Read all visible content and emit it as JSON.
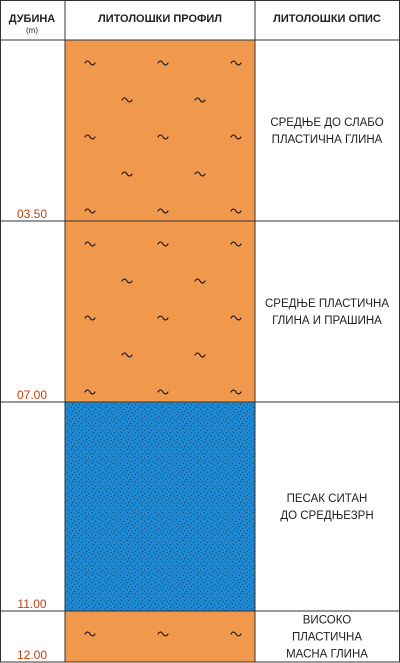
{
  "header": {
    "depth_title": "ДУБИНА",
    "depth_unit": "(m)",
    "profile_title": "ЛИТОЛОШКИ ПРОФИЛ",
    "description_title": "ЛИТОЛОШКИ ОПИС"
  },
  "colors": {
    "clay": "#f0984c",
    "sand": "#1e88d0",
    "depth_label": "#c04010",
    "border": "#333333",
    "text": "#222222"
  },
  "layers": [
    {
      "top": 0,
      "bottom": 3.5,
      "bottom_label": "03.50",
      "material": "clay",
      "fill_color": "#f0984c",
      "pattern": "tilde",
      "description": [
        "СРЕДЊЕ ДО СЛАБО",
        "ПЛАСТИЧНА ГЛИНА"
      ]
    },
    {
      "top": 3.5,
      "bottom": 7.0,
      "bottom_label": "07.00",
      "material": "clay-silt",
      "fill_color": "#f0984c",
      "pattern": "tilde",
      "description": [
        "СРЕДЊЕ ПЛАСТИЧНА",
        "ГЛИНА И ПРАШИНА"
      ]
    },
    {
      "top": 7.0,
      "bottom": 11.0,
      "bottom_label": "11.00",
      "material": "sand",
      "fill_color": "#1e88d0",
      "pattern": "dots",
      "description": [
        "ПЕСАК СИТАН",
        "ДО СРЕДЊЕЗРН"
      ]
    },
    {
      "top": 11.0,
      "bottom": 12.0,
      "bottom_label": "12.00",
      "material": "fat-clay",
      "fill_color": "#f0984c",
      "pattern": "tilde",
      "description": [
        "ВИСОКО",
        "ПЛАСТИЧНА",
        "МАСНА  ГЛИНА"
      ]
    }
  ]
}
